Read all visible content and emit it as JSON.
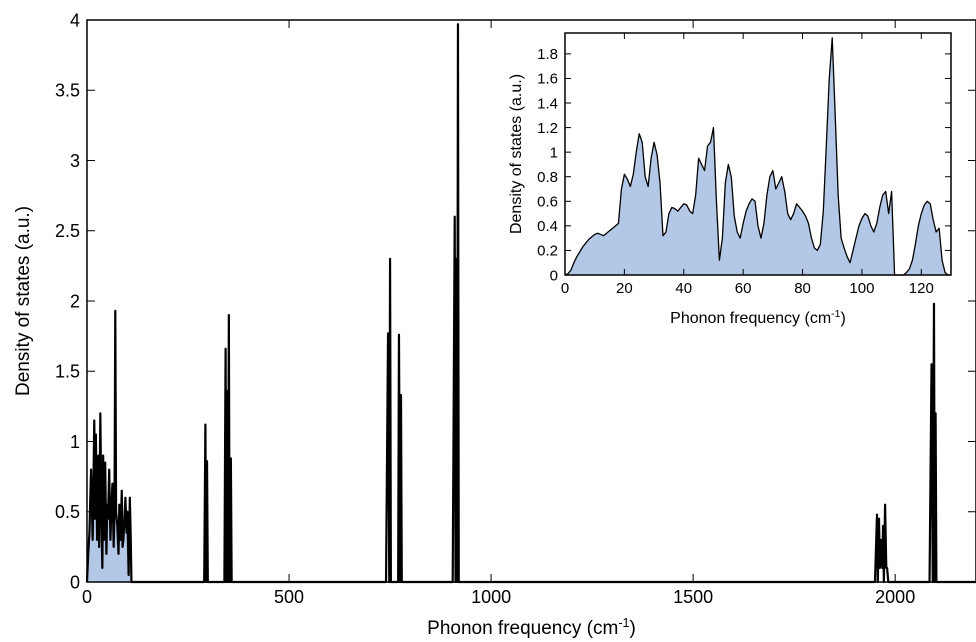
{
  "chart_data": [
    {
      "type": "line",
      "xlabel": "Phonon frequency (cm",
      "xlabel_sup": "-1",
      "xlabel_tail": ")",
      "ylabel": "Density of states (a.u.)",
      "xlim": [
        0,
        2200
      ],
      "ylim": [
        0,
        4
      ],
      "xticks": [
        0,
        500,
        1000,
        1500,
        2000
      ],
      "yticks": [
        0,
        0.5,
        1,
        1.5,
        2,
        2.5,
        3,
        3.5,
        4
      ],
      "ytick_labels": [
        "0",
        "0.5",
        "1",
        "1.5",
        "2",
        "2.5",
        "3",
        "3.5",
        "4"
      ],
      "grid": false,
      "fill_color": "#b3c8e6",
      "line_color": "#000000",
      "filled_region_max_x": 130,
      "series": [
        {
          "x": [
            0,
            3,
            6,
            10,
            14,
            18,
            20,
            22,
            25,
            28,
            30,
            33,
            36,
            38,
            40,
            42,
            45,
            48,
            50,
            52,
            55,
            58,
            60,
            63,
            66,
            68,
            70,
            72,
            75,
            78,
            80,
            83,
            86,
            88,
            90,
            92,
            95,
            98,
            100,
            103,
            106,
            108,
            110,
            112,
            115,
            118,
            120,
            123,
            126,
            128,
            130,
            150,
            290,
            293,
            295,
            297,
            299,
            301,
            303,
            306,
            308,
            310,
            340,
            343,
            345,
            347,
            349,
            351,
            353,
            356,
            358,
            360,
            362,
            364,
            366,
            370,
            740,
            745,
            748,
            750,
            752,
            755,
            757,
            760,
            765,
            770,
            772,
            775,
            777,
            779,
            781,
            785,
            905,
            910,
            912,
            914,
            916,
            918,
            920,
            922,
            924,
            926,
            928,
            930,
            935,
            1950,
            1955,
            1957,
            1960,
            1962,
            1965,
            1968,
            1970,
            1972,
            1975,
            1978,
            1980,
            1983,
            1985,
            1990,
            2085,
            2090,
            2093,
            2096,
            2098,
            2100,
            2102,
            2104,
            2106,
            2108,
            2110,
            2200
          ],
          "y": [
            0,
            0.2,
            0.35,
            0.8,
            0.3,
            1.15,
            0.45,
            1.05,
            0.3,
            0.9,
            0.25,
            1.2,
            0.4,
            0.1,
            0.9,
            0.3,
            0.85,
            0.2,
            0.55,
            0.45,
            0.8,
            0.3,
            0.5,
            0.7,
            0.25,
            0.5,
            1.93,
            0.5,
            0.4,
            0.2,
            0.55,
            0.3,
            0.65,
            0.25,
            0.3,
            0.4,
            0.6,
            0.35,
            0.5,
            0.05,
            0.6,
            0.35,
            0.0,
            0.0,
            0.0,
            0.0,
            0.0,
            0.0,
            0.0,
            0.0,
            0.0,
            0.0,
            0.0,
            1.12,
            0.0,
            0.86,
            0.0,
            0.0,
            0.0,
            0.0,
            0.0,
            0.0,
            0.0,
            1.66,
            0.0,
            1.36,
            0.0,
            1.9,
            0.0,
            0.88,
            0.0,
            0.0,
            0.0,
            0.0,
            0.0,
            0.0,
            0.0,
            1.77,
            0.0,
            2.3,
            0.0,
            0.0,
            0.0,
            0.0,
            0.0,
            0.0,
            1.76,
            0.0,
            1.33,
            0.0,
            0.0,
            0.0,
            0.0,
            2.6,
            0.0,
            2.3,
            0.0,
            3.97,
            0.0,
            0.0,
            0.0,
            0.0,
            0.0,
            0.0,
            0.0,
            0.0,
            0.48,
            0.0,
            0.45,
            0.1,
            0.3,
            0.1,
            0.4,
            0.0,
            0.55,
            0.1,
            0.1,
            0.0,
            0.0,
            0.0,
            0.0,
            1.55,
            0.0,
            1.98,
            0.0,
            1.2,
            0.0,
            0.0,
            0.0,
            0.0,
            0.0,
            0.0
          ]
        }
      ]
    },
    {
      "type": "area",
      "xlabel": "Phonon frequency (cm",
      "xlabel_sup": "-1",
      "xlabel_tail": ")",
      "ylabel": "Density of states (a.u.)",
      "xlim": [
        0,
        130
      ],
      "ylim": [
        0,
        1.97
      ],
      "xticks": [
        0,
        20,
        40,
        60,
        80,
        100,
        120
      ],
      "yticks": [
        0,
        0.2,
        0.4,
        0.6,
        0.8,
        1,
        1.2,
        1.4,
        1.6,
        1.8
      ],
      "ytick_labels": [
        "0",
        "0.2",
        "0.4",
        "0.6",
        "0.8",
        "1",
        "1.2",
        "1.4",
        "1.6",
        "1.8"
      ],
      "grid": false,
      "fill_color": "#b3c8e6",
      "line_color": "#000000",
      "series": [
        {
          "x": [
            0,
            1,
            2,
            3,
            4,
            5,
            6,
            7,
            8,
            9,
            10,
            11,
            12,
            13,
            14,
            15,
            16,
            17,
            18,
            19,
            20,
            21,
            22,
            23,
            24,
            25,
            26,
            27,
            28,
            29,
            30,
            31,
            32,
            33,
            34,
            35,
            36,
            37,
            38,
            39,
            40,
            41,
            42,
            43,
            44,
            45,
            46,
            47,
            48,
            49,
            50,
            51,
            52,
            53,
            54,
            55,
            56,
            57,
            58,
            59,
            60,
            61,
            62,
            63,
            64,
            65,
            66,
            67,
            68,
            69,
            70,
            71,
            72,
            73,
            74,
            75,
            76,
            77,
            78,
            79,
            80,
            81,
            82,
            83,
            84,
            85,
            86,
            87,
            88,
            89,
            90,
            91,
            92,
            93,
            94,
            95,
            96,
            97,
            98,
            99,
            100,
            101,
            102,
            103,
            104,
            105,
            106,
            107,
            108,
            109,
            110,
            111,
            112,
            113,
            114,
            115,
            116,
            117,
            118,
            119,
            120,
            121,
            122,
            123,
            124,
            125,
            126,
            127,
            128,
            129,
            130
          ],
          "y": [
            0,
            0.01,
            0.04,
            0.1,
            0.15,
            0.19,
            0.23,
            0.26,
            0.29,
            0.31,
            0.33,
            0.34,
            0.33,
            0.32,
            0.34,
            0.36,
            0.38,
            0.4,
            0.42,
            0.7,
            0.82,
            0.78,
            0.72,
            0.82,
            1.0,
            1.15,
            1.08,
            0.8,
            0.72,
            0.95,
            1.08,
            0.98,
            0.75,
            0.32,
            0.35,
            0.5,
            0.55,
            0.54,
            0.52,
            0.55,
            0.58,
            0.57,
            0.52,
            0.5,
            0.65,
            0.95,
            0.9,
            0.85,
            1.05,
            1.08,
            1.2,
            0.6,
            0.12,
            0.3,
            0.75,
            0.9,
            0.8,
            0.48,
            0.35,
            0.3,
            0.42,
            0.52,
            0.58,
            0.62,
            0.6,
            0.4,
            0.3,
            0.42,
            0.65,
            0.8,
            0.85,
            0.7,
            0.75,
            0.8,
            0.68,
            0.5,
            0.45,
            0.5,
            0.58,
            0.55,
            0.52,
            0.48,
            0.42,
            0.3,
            0.22,
            0.2,
            0.25,
            0.52,
            1.05,
            1.6,
            1.93,
            1.3,
            0.65,
            0.3,
            0.22,
            0.15,
            0.1,
            0.2,
            0.3,
            0.4,
            0.46,
            0.5,
            0.48,
            0.4,
            0.35,
            0.42,
            0.55,
            0.65,
            0.68,
            0.5,
            0.68,
            0.0,
            0.0,
            0.0,
            0.0,
            0.02,
            0.05,
            0.12,
            0.25,
            0.4,
            0.5,
            0.57,
            0.6,
            0.58,
            0.45,
            0.35,
            0.38,
            0.12,
            0.02,
            0.0,
            0.0
          ]
        }
      ]
    }
  ]
}
